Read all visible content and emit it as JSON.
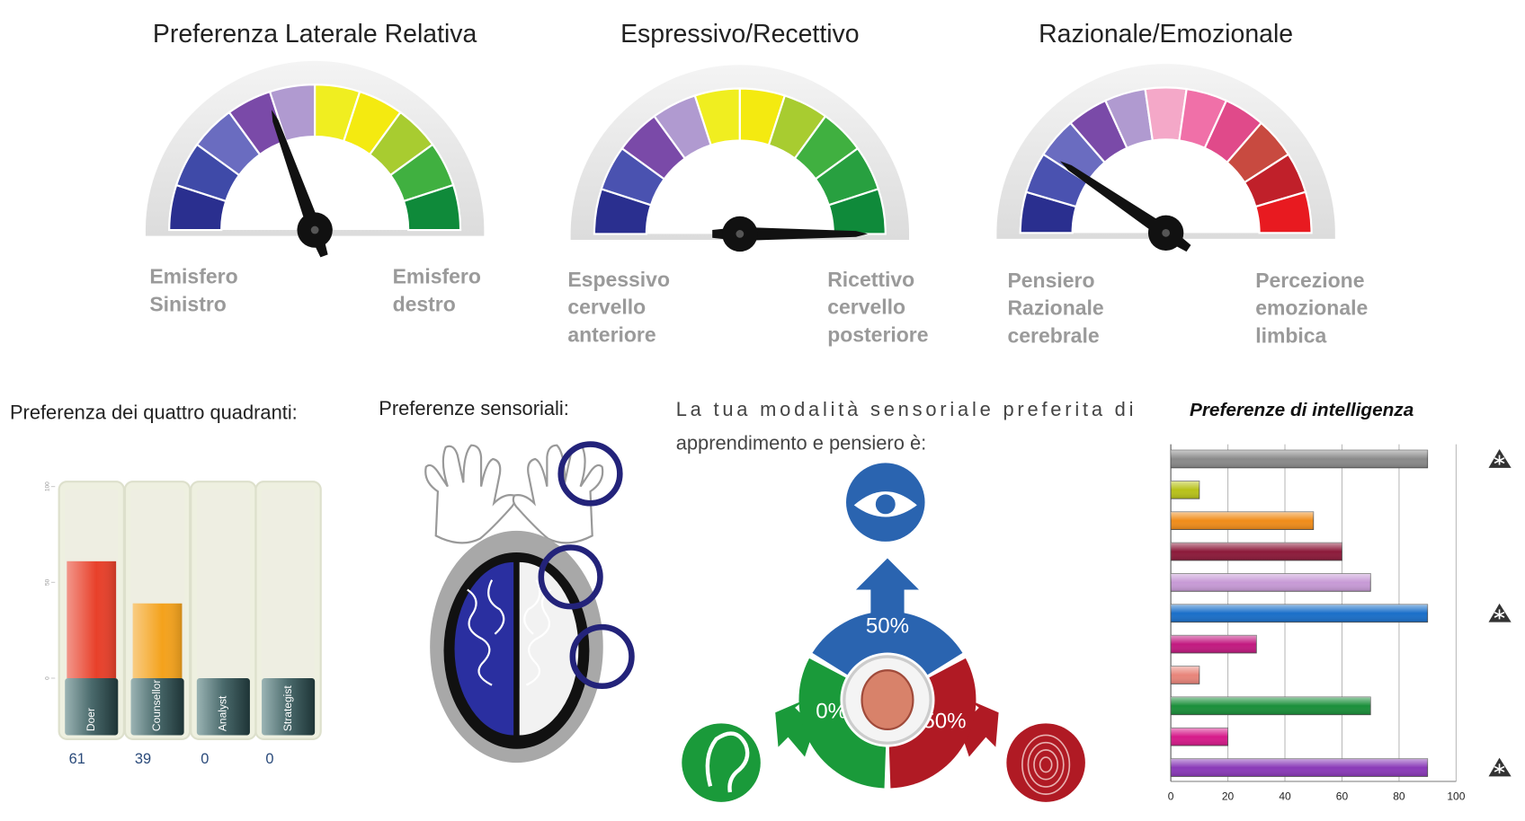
{
  "chart_data": [
    {
      "type": "gauge",
      "title": "Preferenza Laterale Relativa",
      "value": 39,
      "range": [
        0,
        100
      ],
      "colors": [
        "#2a2f8f",
        "#3f4aa8",
        "#6a6cc0",
        "#7a4aa8",
        "#b09ad0",
        "#f0ee20",
        "#f4ea10",
        "#a8cc30",
        "#40b040",
        "#0f8a3a"
      ],
      "left_label": [
        "Emisfero",
        "Sinistro"
      ],
      "right_label": [
        "Emisfero",
        "destro"
      ]
    },
    {
      "type": "gauge",
      "title": "Espressivo/Recettivo",
      "value": 100,
      "range": [
        0,
        100
      ],
      "colors": [
        "#2a2f8f",
        "#4a52b0",
        "#7a4aa8",
        "#b09ad0",
        "#f0ee20",
        "#f4ea10",
        "#a8cc30",
        "#40b040",
        "#28a040",
        "#0f8a3a"
      ],
      "left_label": [
        "Espessivo",
        "cervello",
        "anteriore"
      ],
      "right_label": [
        "Ricettivo",
        "cervello",
        "posteriore"
      ]
    },
    {
      "type": "gauge",
      "title": "Razionale/Emozionale",
      "value": 19,
      "range": [
        0,
        100
      ],
      "colors": [
        "#2a2f8f",
        "#4a52b0",
        "#6a6cc0",
        "#7a4aa8",
        "#b09ad0",
        "#f4a8c8",
        "#f070a8",
        "#e04a8a",
        "#c84a40",
        "#c0202a",
        "#e81a20"
      ],
      "left_label": [
        "Pensiero",
        "Razionale",
        "cerebrale"
      ],
      "right_label": [
        "Percezione",
        "emozionale",
        "limbica"
      ]
    },
    {
      "type": "bar",
      "title": "Preferenza dei quattro quadranti:",
      "categories": [
        "Doer",
        "Counsellor",
        "Analyst",
        "Strategist"
      ],
      "values": [
        61,
        39,
        0,
        0
      ],
      "colors": [
        "#e8402a",
        "#f4a21c",
        "#bbbbbb",
        "#bbbbbb"
      ],
      "ylim": [
        0,
        100
      ],
      "yticks": [
        0,
        50,
        100
      ]
    },
    {
      "type": "radial",
      "heading": "Preferenze sensoriali:",
      "title": [
        "La tua modalità sensoriale preferita di",
        "apprendimento e pensiero è:"
      ],
      "values": [
        50,
        50,
        0
      ],
      "value_labels": [
        "50%",
        "50%",
        "0%"
      ],
      "colors": [
        "#2a64b0",
        "#b01a24",
        "#1a9a3a"
      ]
    },
    {
      "type": "hbar",
      "title": "Preferenze di intelligenza",
      "values": [
        90,
        10,
        50,
        60,
        70,
        90,
        30,
        10,
        70,
        20,
        90
      ],
      "colors": [
        "#8a8a8a",
        "#b8c21a",
        "#f08c1a",
        "#8c1a3a",
        "#c79ad6",
        "#1a6fc9",
        "#c21a80",
        "#e8857a",
        "#1a8f3a",
        "#d61a8a",
        "#8a3ab8"
      ],
      "xlim": [
        0,
        100
      ],
      "xticks": [
        0,
        20,
        40,
        60,
        80,
        100
      ],
      "grid": true
    }
  ]
}
